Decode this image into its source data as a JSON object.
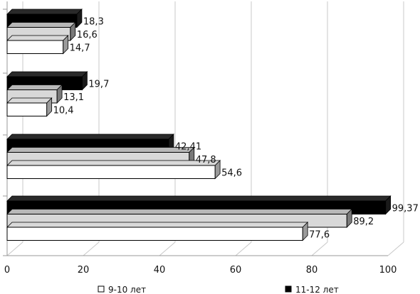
{
  "chart_data": {
    "type": "bar",
    "orientation": "horizontal",
    "xlim": [
      0,
      100
    ],
    "x_ticks": [
      "0",
      "20",
      "40",
      "60",
      "80",
      "100"
    ],
    "grid": true,
    "legend_position": "bottom",
    "groups": 4,
    "series": [
      {
        "name": "11-12 лет",
        "color": "#000000",
        "values": [
          18.3,
          19.7,
          42.41,
          99.37
        ],
        "labels": [
          "18,3",
          "19,7",
          "42,41",
          "99,37"
        ]
      },
      {
        "name": "",
        "color": "#d8d8d8",
        "values": [
          16.6,
          13.1,
          47.8,
          89.2
        ],
        "labels": [
          "16,6",
          "13,1",
          "47,8",
          "89,2"
        ]
      },
      {
        "name": "9-10 лет",
        "color": "#ffffff",
        "values": [
          14.7,
          10.4,
          54.6,
          77.6
        ],
        "labels": [
          "14,7",
          "10,4",
          "54,6",
          "77,6"
        ]
      }
    ]
  }
}
